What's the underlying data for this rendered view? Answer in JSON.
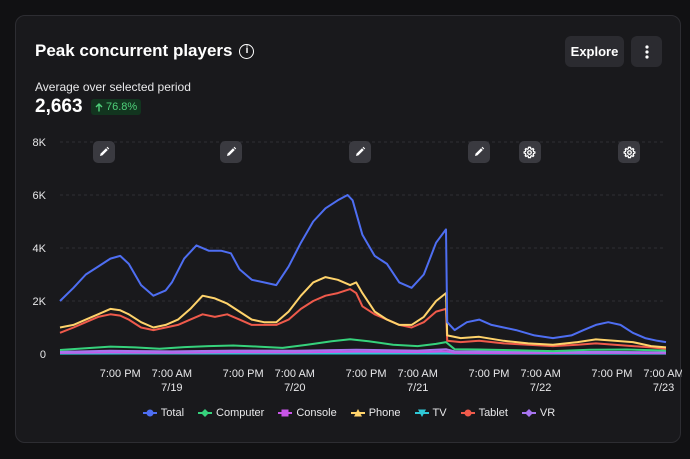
{
  "card": {
    "title": "Peak concurrent players",
    "subtitle": "Average over selected period",
    "average_value": "2,663",
    "change_badge": "76.8%",
    "change_direction": "up",
    "explore_label": "Explore",
    "info_icon": "info-icon",
    "more_icon": "vertical-ellipsis-icon"
  },
  "annotations": [
    {
      "icon": "pencil-icon",
      "x": -1.05
    },
    {
      "icon": "pencil-icon",
      "x": -0.02
    },
    {
      "icon": "pencil-icon",
      "x": 1.03
    },
    {
      "icon": "pencil-icon",
      "x": 2.0
    },
    {
      "icon": "gear-icon",
      "x": 2.41
    },
    {
      "icon": "gear-icon",
      "x": 3.22
    }
  ],
  "chart_data": {
    "type": "line",
    "title": "",
    "xlabel": "",
    "ylabel": "",
    "ylim": [
      0,
      8000
    ],
    "yticks": [
      0,
      2000,
      4000,
      6000,
      8000
    ],
    "ytick_labels": [
      "0",
      "2K",
      "4K",
      "6K",
      "8K"
    ],
    "xlim": [
      -1.41,
      3.52
    ],
    "xticks": [
      {
        "x": -0.92,
        "line1": "7:00 PM",
        "line2": ""
      },
      {
        "x": -0.5,
        "line1": "7:00 AM",
        "line2": "7/19"
      },
      {
        "x": 0.08,
        "line1": "7:00 PM",
        "line2": ""
      },
      {
        "x": 0.5,
        "line1": "7:00 AM",
        "line2": "7/20"
      },
      {
        "x": 1.08,
        "line1": "7:00 PM",
        "line2": ""
      },
      {
        "x": 1.5,
        "line1": "7:00 AM",
        "line2": "7/21"
      },
      {
        "x": 2.08,
        "line1": "7:00 PM",
        "line2": ""
      },
      {
        "x": 2.5,
        "line1": "7:00 AM",
        "line2": "7/22"
      },
      {
        "x": 3.08,
        "line1": "7:00 PM",
        "line2": ""
      },
      {
        "x": 3.5,
        "line1": "7:00 AM",
        "line2": "7/23"
      }
    ],
    "grid": true,
    "legend_position": "bottom",
    "series": [
      {
        "name": "Total",
        "color": "#4e6ef2",
        "points": [
          [
            -1.41,
            2000
          ],
          [
            -1.3,
            2500
          ],
          [
            -1.2,
            3000
          ],
          [
            -1.1,
            3300
          ],
          [
            -1.0,
            3600
          ],
          [
            -0.92,
            3700
          ],
          [
            -0.85,
            3400
          ],
          [
            -0.75,
            2600
          ],
          [
            -0.65,
            2200
          ],
          [
            -0.55,
            2400
          ],
          [
            -0.5,
            2700
          ],
          [
            -0.4,
            3600
          ],
          [
            -0.3,
            4100
          ],
          [
            -0.2,
            3900
          ],
          [
            -0.1,
            3900
          ],
          [
            -0.02,
            3800
          ],
          [
            0.05,
            3200
          ],
          [
            0.15,
            2800
          ],
          [
            0.25,
            2700
          ],
          [
            0.35,
            2600
          ],
          [
            0.45,
            3300
          ],
          [
            0.55,
            4200
          ],
          [
            0.65,
            5000
          ],
          [
            0.75,
            5500
          ],
          [
            0.85,
            5800
          ],
          [
            0.93,
            6000
          ],
          [
            0.97,
            5800
          ],
          [
            1.05,
            4500
          ],
          [
            1.15,
            3700
          ],
          [
            1.25,
            3400
          ],
          [
            1.35,
            2700
          ],
          [
            1.45,
            2500
          ],
          [
            1.55,
            3000
          ],
          [
            1.65,
            4200
          ],
          [
            1.73,
            4700
          ],
          [
            1.74,
            1200
          ],
          [
            1.8,
            900
          ],
          [
            1.9,
            1200
          ],
          [
            2.0,
            1300
          ],
          [
            2.1,
            1100
          ],
          [
            2.2,
            1000
          ],
          [
            2.3,
            900
          ],
          [
            2.45,
            700
          ],
          [
            2.6,
            600
          ],
          [
            2.75,
            700
          ],
          [
            2.85,
            900
          ],
          [
            2.95,
            1100
          ],
          [
            3.05,
            1200
          ],
          [
            3.15,
            1100
          ],
          [
            3.25,
            800
          ],
          [
            3.35,
            600
          ],
          [
            3.45,
            500
          ],
          [
            3.52,
            450
          ]
        ]
      },
      {
        "name": "Computer",
        "color": "#36d27c",
        "points": [
          [
            -1.41,
            150
          ],
          [
            -1.2,
            220
          ],
          [
            -1.0,
            280
          ],
          [
            -0.8,
            250
          ],
          [
            -0.6,
            200
          ],
          [
            -0.4,
            260
          ],
          [
            -0.2,
            300
          ],
          [
            0.0,
            320
          ],
          [
            0.2,
            280
          ],
          [
            0.4,
            230
          ],
          [
            0.6,
            350
          ],
          [
            0.8,
            480
          ],
          [
            0.95,
            560
          ],
          [
            1.1,
            480
          ],
          [
            1.3,
            350
          ],
          [
            1.5,
            300
          ],
          [
            1.65,
            380
          ],
          [
            1.73,
            450
          ],
          [
            1.8,
            180
          ],
          [
            2.0,
            170
          ],
          [
            2.3,
            140
          ],
          [
            2.6,
            110
          ],
          [
            2.9,
            160
          ],
          [
            3.2,
            170
          ],
          [
            3.52,
            130
          ]
        ]
      },
      {
        "name": "Console",
        "color": "#c855e8",
        "points": [
          [
            -1.41,
            40
          ],
          [
            -1.0,
            60
          ],
          [
            -0.5,
            50
          ],
          [
            0.0,
            70
          ],
          [
            0.5,
            60
          ],
          [
            1.0,
            90
          ],
          [
            1.5,
            70
          ],
          [
            1.73,
            100
          ],
          [
            1.8,
            40
          ],
          [
            2.3,
            30
          ],
          [
            2.8,
            40
          ],
          [
            3.2,
            40
          ],
          [
            3.52,
            30
          ]
        ]
      },
      {
        "name": "Phone",
        "color": "#ffd36b",
        "points": [
          [
            -1.41,
            1000
          ],
          [
            -1.3,
            1100
          ],
          [
            -1.2,
            1300
          ],
          [
            -1.1,
            1500
          ],
          [
            -1.0,
            1700
          ],
          [
            -0.92,
            1650
          ],
          [
            -0.85,
            1500
          ],
          [
            -0.75,
            1200
          ],
          [
            -0.65,
            1000
          ],
          [
            -0.55,
            1100
          ],
          [
            -0.45,
            1300
          ],
          [
            -0.35,
            1700
          ],
          [
            -0.25,
            2200
          ],
          [
            -0.15,
            2100
          ],
          [
            -0.05,
            1900
          ],
          [
            0.05,
            1600
          ],
          [
            0.15,
            1300
          ],
          [
            0.25,
            1200
          ],
          [
            0.35,
            1200
          ],
          [
            0.45,
            1600
          ],
          [
            0.55,
            2200
          ],
          [
            0.65,
            2700
          ],
          [
            0.75,
            2900
          ],
          [
            0.85,
            2800
          ],
          [
            0.95,
            2600
          ],
          [
            1.0,
            2700
          ],
          [
            1.05,
            2300
          ],
          [
            1.15,
            1600
          ],
          [
            1.25,
            1300
          ],
          [
            1.35,
            1100
          ],
          [
            1.45,
            1100
          ],
          [
            1.55,
            1400
          ],
          [
            1.65,
            2000
          ],
          [
            1.73,
            2300
          ],
          [
            1.74,
            700
          ],
          [
            1.85,
            600
          ],
          [
            2.0,
            650
          ],
          [
            2.2,
            500
          ],
          [
            2.4,
            400
          ],
          [
            2.6,
            350
          ],
          [
            2.8,
            450
          ],
          [
            2.95,
            550
          ],
          [
            3.1,
            500
          ],
          [
            3.25,
            450
          ],
          [
            3.4,
            300
          ],
          [
            3.52,
            250
          ]
        ]
      },
      {
        "name": "TV",
        "color": "#2fc8d6",
        "points": [
          [
            -1.41,
            15
          ],
          [
            -0.5,
            20
          ],
          [
            0.5,
            20
          ],
          [
            1.5,
            20
          ],
          [
            2.5,
            15
          ],
          [
            3.52,
            15
          ]
        ]
      },
      {
        "name": "Tablet",
        "color": "#ef5a4b",
        "points": [
          [
            -1.41,
            800
          ],
          [
            -1.3,
            1000
          ],
          [
            -1.2,
            1200
          ],
          [
            -1.1,
            1400
          ],
          [
            -1.0,
            1500
          ],
          [
            -0.92,
            1450
          ],
          [
            -0.85,
            1300
          ],
          [
            -0.75,
            1000
          ],
          [
            -0.65,
            900
          ],
          [
            -0.55,
            1000
          ],
          [
            -0.45,
            1100
          ],
          [
            -0.35,
            1300
          ],
          [
            -0.25,
            1500
          ],
          [
            -0.15,
            1400
          ],
          [
            -0.05,
            1500
          ],
          [
            0.05,
            1300
          ],
          [
            0.15,
            1100
          ],
          [
            0.25,
            1100
          ],
          [
            0.35,
            1100
          ],
          [
            0.45,
            1300
          ],
          [
            0.55,
            1700
          ],
          [
            0.65,
            2000
          ],
          [
            0.75,
            2200
          ],
          [
            0.85,
            2300
          ],
          [
            0.95,
            2450
          ],
          [
            1.0,
            2300
          ],
          [
            1.05,
            1800
          ],
          [
            1.15,
            1500
          ],
          [
            1.25,
            1300
          ],
          [
            1.35,
            1100
          ],
          [
            1.45,
            1000
          ],
          [
            1.55,
            1200
          ],
          [
            1.65,
            1600
          ],
          [
            1.73,
            1700
          ],
          [
            1.74,
            500
          ],
          [
            1.85,
            450
          ],
          [
            2.0,
            500
          ],
          [
            2.2,
            400
          ],
          [
            2.4,
            350
          ],
          [
            2.6,
            300
          ],
          [
            2.8,
            350
          ],
          [
            2.95,
            400
          ],
          [
            3.1,
            350
          ],
          [
            3.25,
            300
          ],
          [
            3.4,
            250
          ],
          [
            3.52,
            200
          ]
        ]
      },
      {
        "name": "VR",
        "color": "#a774ef",
        "points": [
          [
            -1.41,
            80
          ],
          [
            -1.0,
            120
          ],
          [
            -0.5,
            100
          ],
          [
            0.0,
            130
          ],
          [
            0.5,
            120
          ],
          [
            1.0,
            160
          ],
          [
            1.5,
            130
          ],
          [
            1.73,
            180
          ],
          [
            1.8,
            100
          ],
          [
            2.2,
            90
          ],
          [
            2.6,
            70
          ],
          [
            3.0,
            80
          ],
          [
            3.3,
            70
          ],
          [
            3.52,
            60
          ]
        ]
      }
    ]
  }
}
